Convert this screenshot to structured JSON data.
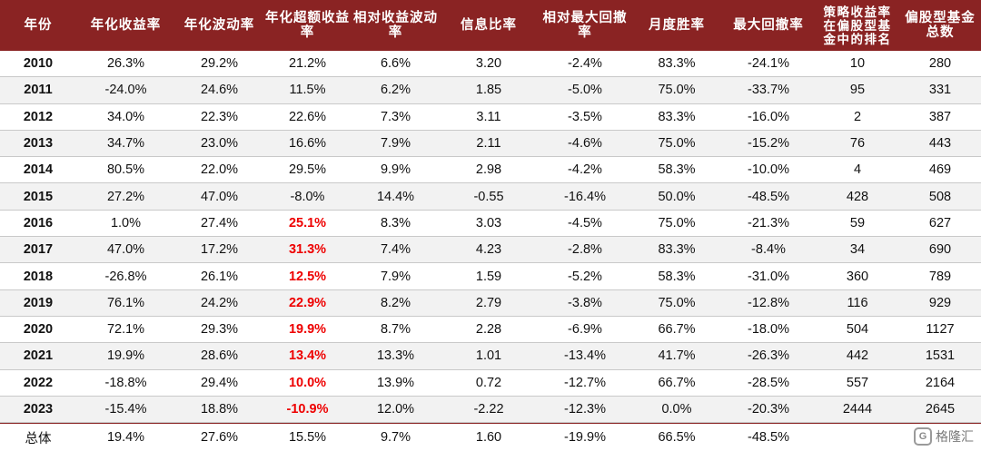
{
  "headers": [
    "年份",
    "年化收益率",
    "年化波动率",
    "年化超额收益率",
    "相对收益波动率",
    "信息比率",
    "相对最大回撤率",
    "月度胜率",
    "最大回撤率",
    "策略收益率在偏股型基金中的排名",
    "偏股型基金总数"
  ],
  "rows": [
    [
      "2010",
      "26.3%",
      "29.2%",
      "21.2%",
      "6.6%",
      "3.20",
      "-2.4%",
      "83.3%",
      "-24.1%",
      "10",
      "280"
    ],
    [
      "2011",
      "-24.0%",
      "24.6%",
      "11.5%",
      "6.2%",
      "1.85",
      "-5.0%",
      "75.0%",
      "-33.7%",
      "95",
      "331"
    ],
    [
      "2012",
      "34.0%",
      "22.3%",
      "22.6%",
      "7.3%",
      "3.11",
      "-3.5%",
      "83.3%",
      "-16.0%",
      "2",
      "387"
    ],
    [
      "2013",
      "34.7%",
      "23.0%",
      "16.6%",
      "7.9%",
      "2.11",
      "-4.6%",
      "75.0%",
      "-15.2%",
      "76",
      "443"
    ],
    [
      "2014",
      "80.5%",
      "22.0%",
      "29.5%",
      "9.9%",
      "2.98",
      "-4.2%",
      "58.3%",
      "-10.0%",
      "4",
      "469"
    ],
    [
      "2015",
      "27.2%",
      "47.0%",
      "-8.0%",
      "14.4%",
      "-0.55",
      "-16.4%",
      "50.0%",
      "-48.5%",
      "428",
      "508"
    ],
    [
      "2016",
      "1.0%",
      "27.4%",
      "25.1%",
      "8.3%",
      "3.03",
      "-4.5%",
      "75.0%",
      "-21.3%",
      "59",
      "627"
    ],
    [
      "2017",
      "47.0%",
      "17.2%",
      "31.3%",
      "7.4%",
      "4.23",
      "-2.8%",
      "83.3%",
      "-8.4%",
      "34",
      "690"
    ],
    [
      "2018",
      "-26.8%",
      "26.1%",
      "12.5%",
      "7.9%",
      "1.59",
      "-5.2%",
      "58.3%",
      "-31.0%",
      "360",
      "789"
    ],
    [
      "2019",
      "76.1%",
      "24.2%",
      "22.9%",
      "8.2%",
      "2.79",
      "-3.8%",
      "75.0%",
      "-12.8%",
      "116",
      "929"
    ],
    [
      "2020",
      "72.1%",
      "29.3%",
      "19.9%",
      "8.7%",
      "2.28",
      "-6.9%",
      "66.7%",
      "-18.0%",
      "504",
      "1127"
    ],
    [
      "2021",
      "19.9%",
      "28.6%",
      "13.4%",
      "13.3%",
      "1.01",
      "-13.4%",
      "41.7%",
      "-26.3%",
      "442",
      "1531"
    ],
    [
      "2022",
      "-18.8%",
      "29.4%",
      "10.0%",
      "13.9%",
      "0.72",
      "-12.7%",
      "66.7%",
      "-28.5%",
      "557",
      "2164"
    ],
    [
      "2023",
      "-15.4%",
      "18.8%",
      "-10.9%",
      "12.0%",
      "-2.22",
      "-12.3%",
      "0.0%",
      "-20.3%",
      "2444",
      "2645"
    ]
  ],
  "highlight_rows": [
    6,
    7,
    8,
    9,
    10,
    11,
    12,
    13
  ],
  "highlight_col": 3,
  "total": [
    "总体",
    "19.4%",
    "27.6%",
    "15.5%",
    "9.7%",
    "1.60",
    "-19.9%",
    "66.5%",
    "-48.5%",
    "",
    ""
  ],
  "watermark": "格隆汇",
  "colors": {
    "header_bg": "#8a2323",
    "highlight": "#ee0000",
    "alt_row": "#f2f2f2"
  }
}
